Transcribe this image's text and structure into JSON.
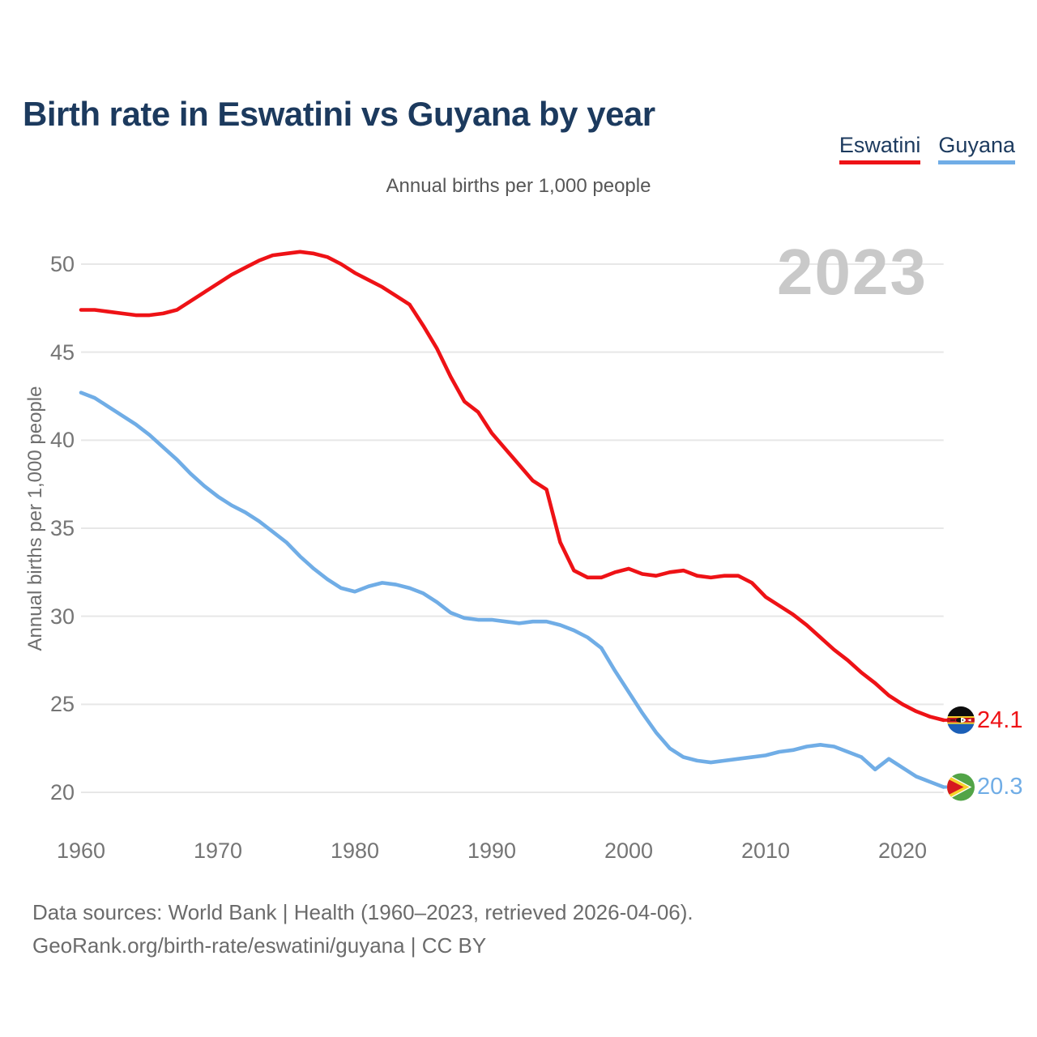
{
  "header": {
    "title": "Birth rate in Eswatini vs Guyana by year"
  },
  "legend": [
    {
      "label": "Eswatini",
      "color": "#ee1216"
    },
    {
      "label": "Guyana",
      "color": "#70ade6"
    }
  ],
  "subtitle": "Annual births per 1,000 people",
  "watermark": "2023",
  "y_axis": {
    "title": "Annual births per 1,000 people",
    "ticks": [
      20,
      25,
      30,
      35,
      40,
      45,
      50
    ]
  },
  "x_axis": {
    "ticks": [
      1960,
      1970,
      1980,
      1990,
      2000,
      2010,
      2020
    ]
  },
  "end_labels": [
    {
      "series": "Eswatini",
      "value": "24.1",
      "color": "#ee1216",
      "flag": "eswatini-flag"
    },
    {
      "series": "Guyana",
      "value": "20.3",
      "color": "#70ade6",
      "flag": "guyana-flag"
    }
  ],
  "footer": {
    "line1": "Data sources: World Bank | Health (1960–2023, retrieved 2026-04-06).",
    "line2": "GeoRank.org/birth-rate/eswatini/guyana | CC BY"
  },
  "chart_data": {
    "type": "line",
    "title": "Birth rate in Eswatini vs Guyana by year",
    "ylabel": "Annual births per 1,000 people",
    "xlim": [
      1960,
      2023
    ],
    "ylim": [
      18.5,
      52
    ],
    "grid": "horizontal",
    "legend_position": "top-right",
    "x": [
      1960,
      1961,
      1962,
      1963,
      1964,
      1965,
      1966,
      1967,
      1968,
      1969,
      1970,
      1971,
      1972,
      1973,
      1974,
      1975,
      1976,
      1977,
      1978,
      1979,
      1980,
      1981,
      1982,
      1983,
      1984,
      1985,
      1986,
      1987,
      1988,
      1989,
      1990,
      1991,
      1992,
      1993,
      1994,
      1995,
      1996,
      1997,
      1998,
      1999,
      2000,
      2001,
      2002,
      2003,
      2004,
      2005,
      2006,
      2007,
      2008,
      2009,
      2010,
      2011,
      2012,
      2013,
      2014,
      2015,
      2016,
      2017,
      2018,
      2019,
      2020,
      2021,
      2022,
      2023
    ],
    "series": [
      {
        "name": "Eswatini",
        "color": "#ee1216",
        "end_value": 24.1,
        "values": [
          47.4,
          47.4,
          47.3,
          47.2,
          47.1,
          47.1,
          47.2,
          47.4,
          47.9,
          48.4,
          48.9,
          49.4,
          49.8,
          50.2,
          50.5,
          50.6,
          50.7,
          50.6,
          50.4,
          50.0,
          49.5,
          49.1,
          48.7,
          48.2,
          47.7,
          46.5,
          45.2,
          43.6,
          42.2,
          41.6,
          40.4,
          39.5,
          38.6,
          37.7,
          37.2,
          34.2,
          32.6,
          32.2,
          32.2,
          32.5,
          32.7,
          32.4,
          32.3,
          32.5,
          32.6,
          32.3,
          32.2,
          32.3,
          32.3,
          31.9,
          31.1,
          30.6,
          30.1,
          29.5,
          28.8,
          28.1,
          27.5,
          26.8,
          26.2,
          25.5,
          25.0,
          24.6,
          24.3,
          24.1
        ]
      },
      {
        "name": "Guyana",
        "color": "#70ade6",
        "end_value": 20.3,
        "values": [
          42.7,
          42.4,
          41.9,
          41.4,
          40.9,
          40.3,
          39.6,
          38.9,
          38.1,
          37.4,
          36.8,
          36.3,
          35.9,
          35.4,
          34.8,
          34.2,
          33.4,
          32.7,
          32.1,
          31.6,
          31.4,
          31.7,
          31.9,
          31.8,
          31.6,
          31.3,
          30.8,
          30.2,
          29.9,
          29.8,
          29.8,
          29.7,
          29.6,
          29.7,
          29.7,
          29.5,
          29.2,
          28.8,
          28.2,
          26.9,
          25.7,
          24.5,
          23.4,
          22.5,
          22.0,
          21.8,
          21.7,
          21.8,
          21.9,
          22.0,
          22.1,
          22.3,
          22.4,
          22.6,
          22.7,
          22.6,
          22.3,
          22.0,
          21.3,
          21.9,
          21.4,
          20.9,
          20.6,
          20.3
        ]
      }
    ]
  }
}
